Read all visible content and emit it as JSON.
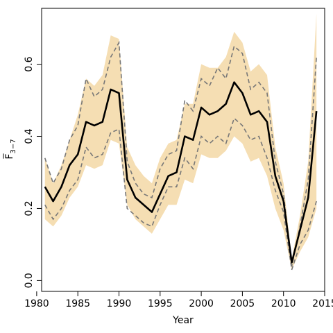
{
  "chart_data": {
    "type": "area",
    "xlabel": "Year",
    "ylabel": "F̅",
    "ylabel_subscript": "3−7",
    "xlim": [
      1980.6,
      2015.0
    ],
    "ylim": [
      -0.03,
      0.755
    ],
    "x_ticks": [
      1980,
      1985,
      1990,
      1995,
      2000,
      2005,
      2010,
      2015
    ],
    "x_tick_labels": [
      "1980",
      "1985",
      "1990",
      "1995",
      "2000",
      "2005",
      "2010",
      "2015"
    ],
    "y_ticks": [
      0.0,
      0.2,
      0.4,
      0.6
    ],
    "y_tick_labels": [
      "0.0",
      "0.2",
      "0.4",
      "0.6"
    ],
    "grid": false,
    "x": [
      1981,
      1982,
      1983,
      1984,
      1985,
      1986,
      1987,
      1988,
      1989,
      1990,
      1991,
      1992,
      1993,
      1994,
      1995,
      1996,
      1997,
      1998,
      1999,
      2000,
      2001,
      2002,
      2003,
      2004,
      2005,
      2006,
      2007,
      2008,
      2009,
      2010,
      2011,
      2012,
      2013,
      2014
    ],
    "series": [
      {
        "role": "band",
        "color": "#f5deb3",
        "lower": [
          0.17,
          0.15,
          0.18,
          0.23,
          0.26,
          0.32,
          0.31,
          0.32,
          0.39,
          0.38,
          0.21,
          0.17,
          0.15,
          0.13,
          0.17,
          0.21,
          0.21,
          0.28,
          0.27,
          0.35,
          0.34,
          0.34,
          0.36,
          0.4,
          0.38,
          0.33,
          0.34,
          0.29,
          0.2,
          0.14,
          0.03,
          0.08,
          0.12,
          0.2
        ],
        "upper": [
          0.34,
          0.27,
          0.32,
          0.39,
          0.46,
          0.56,
          0.54,
          0.57,
          0.68,
          0.67,
          0.37,
          0.32,
          0.29,
          0.27,
          0.34,
          0.38,
          0.39,
          0.49,
          0.49,
          0.6,
          0.59,
          0.59,
          0.62,
          0.69,
          0.66,
          0.58,
          0.6,
          0.57,
          0.37,
          0.27,
          0.06,
          0.18,
          0.33,
          0.74
        ]
      },
      {
        "role": "interval",
        "color": "#777777",
        "lower": [
          0.21,
          0.17,
          0.2,
          0.25,
          0.28,
          0.37,
          0.34,
          0.35,
          0.41,
          0.42,
          0.2,
          0.18,
          0.16,
          0.15,
          0.21,
          0.26,
          0.26,
          0.34,
          0.31,
          0.4,
          0.38,
          0.4,
          0.38,
          0.45,
          0.43,
          0.39,
          0.4,
          0.34,
          0.25,
          0.19,
          0.03,
          0.1,
          0.14,
          0.22
        ]
      },
      {
        "role": "interval",
        "color": "#777777",
        "upper": [
          0.34,
          0.27,
          0.31,
          0.39,
          0.43,
          0.56,
          0.51,
          0.53,
          0.62,
          0.66,
          0.33,
          0.27,
          0.24,
          0.23,
          0.31,
          0.35,
          0.36,
          0.5,
          0.47,
          0.56,
          0.54,
          0.59,
          0.56,
          0.65,
          0.63,
          0.53,
          0.55,
          0.52,
          0.33,
          0.24,
          0.04,
          0.15,
          0.28,
          0.62
        ]
      },
      {
        "role": "estimate",
        "color": "#000000",
        "values": [
          0.26,
          0.22,
          0.26,
          0.32,
          0.35,
          0.44,
          0.43,
          0.44,
          0.53,
          0.52,
          0.28,
          0.23,
          0.21,
          0.19,
          0.24,
          0.29,
          0.3,
          0.4,
          0.39,
          0.48,
          0.46,
          0.47,
          0.49,
          0.55,
          0.52,
          0.46,
          0.47,
          0.44,
          0.29,
          0.22,
          0.05,
          0.14,
          0.23,
          0.47
        ]
      }
    ]
  }
}
